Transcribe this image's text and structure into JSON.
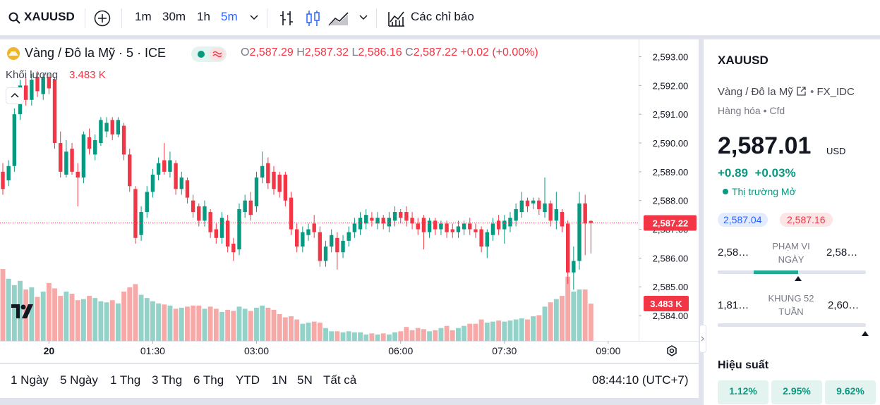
{
  "toolbar": {
    "symbol": "XAUUSD",
    "intervals": [
      "1m",
      "30m",
      "1h",
      "5m"
    ],
    "indicators": "Các chỉ báo"
  },
  "legend": {
    "title": "Vàng / Đô la Mỹ · 5 · ICE",
    "o_key": "O",
    "o": "2,587.29",
    "h_key": "H",
    "h": "2,587.32",
    "l_key": "L",
    "l": "2,586.16",
    "c_key": "C",
    "c": "2,587.22",
    "change": "+0.02 (+0.00%)",
    "volume_title": "Khối lượng"
  },
  "chart": {
    "type": "candlestick",
    "up_color": "#089981",
    "down_color": "#f23645",
    "up_volume_color": "#92d2c8",
    "down_volume_color": "#f7a9a7",
    "ylim": [
      2583.12,
      2593.6
    ],
    "yticks": [
      {
        "value": 2584,
        "label": "2,584.00"
      },
      {
        "value": 2585,
        "label": "2,585.00"
      },
      {
        "value": 2586,
        "label": "2,586.00"
      },
      {
        "value": 2587,
        "label": "2,587.00"
      },
      {
        "value": 2588,
        "label": "2,588.00"
      },
      {
        "value": 2589,
        "label": "2,589.00"
      },
      {
        "value": 2590,
        "label": "2,590.00"
      },
      {
        "value": 2591,
        "label": "2,591.00"
      },
      {
        "value": 2592,
        "label": "2,592.00"
      },
      {
        "value": 2593,
        "label": "2,593.00"
      }
    ],
    "xlim": [
      -0.49,
      110.28
    ],
    "xticks": [
      {
        "value": 8,
        "label": "20"
      },
      {
        "value": 26,
        "label": "01:30"
      },
      {
        "value": 44,
        "label": "03:00"
      },
      {
        "value": 69,
        "label": "06:00"
      },
      {
        "value": 87,
        "label": "07:30"
      },
      {
        "value": 105,
        "label": "09:00"
      }
    ],
    "last_price": {
      "value": 2587.22,
      "label": "2,587.22"
    },
    "volume_lim": [
      0,
      9.2
    ],
    "volume_label": "3.483 K",
    "candles": [
      [
        2589.0,
        2589.3,
        2588.2,
        2588.4
      ],
      [
        2588.7,
        2589.4,
        2588.5,
        2589.2
      ],
      [
        2589.2,
        2591.2,
        2589.0,
        2591.0
      ],
      [
        2591.0,
        2592.2,
        2590.8,
        2592.0
      ],
      [
        2592.0,
        2592.3,
        2591.3,
        2591.5
      ],
      [
        2591.5,
        2592.4,
        2591.3,
        2592.2
      ],
      [
        2592.3,
        2592.5,
        2591.6,
        2591.8
      ],
      [
        2591.7,
        2592.4,
        2591.5,
        2592.3
      ],
      [
        2592.3,
        2592.4,
        2591.7,
        2591.9
      ],
      [
        2592.2,
        2592.3,
        2589.8,
        2590.0
      ],
      [
        2590.0,
        2590.4,
        2588.8,
        2589.0
      ],
      [
        2588.9,
        2590.1,
        2588.8,
        2589.7
      ],
      [
        2589.8,
        2590.0,
        2588.9,
        2589.0
      ],
      [
        2589.0,
        2589.3,
        2587.8,
        2588.8
      ],
      [
        2588.8,
        2590.4,
        2588.6,
        2590.3
      ],
      [
        2590.2,
        2590.5,
        2589.6,
        2589.8
      ],
      [
        2589.6,
        2590.3,
        2589.4,
        2590.1
      ],
      [
        2590.0,
        2590.9,
        2589.9,
        2590.8
      ],
      [
        2590.4,
        2590.9,
        2590.2,
        2590.7
      ],
      [
        2590.8,
        2590.9,
        2590.1,
        2590.3
      ],
      [
        2590.3,
        2590.9,
        2590.2,
        2590.8
      ],
      [
        2590.6,
        2590.7,
        2589.4,
        2589.6
      ],
      [
        2589.6,
        2589.8,
        2588.3,
        2588.5
      ],
      [
        2588.4,
        2588.5,
        2586.5,
        2586.7
      ],
      [
        2586.8,
        2587.8,
        2586.6,
        2587.6
      ],
      [
        2587.6,
        2588.5,
        2587.4,
        2588.3
      ],
      [
        2588.3,
        2589.1,
        2588.1,
        2588.9
      ],
      [
        2588.9,
        2589.5,
        2588.7,
        2589.3
      ],
      [
        2589.4,
        2590.0,
        2588.9,
        2589.0
      ],
      [
        2589.0,
        2589.7,
        2588.8,
        2589.4
      ],
      [
        2589.3,
        2589.4,
        2588.2,
        2588.4
      ],
      [
        2588.4,
        2589.0,
        2588.2,
        2588.8
      ],
      [
        2588.7,
        2588.8,
        2587.9,
        2588.1
      ],
      [
        2588.0,
        2588.2,
        2587.4,
        2587.6
      ],
      [
        2587.8,
        2587.9,
        2587.1,
        2587.3
      ],
      [
        2587.3,
        2588.0,
        2587.1,
        2587.8
      ],
      [
        2587.6,
        2587.7,
        2586.7,
        2586.9
      ],
      [
        2587.0,
        2587.2,
        2586.5,
        2586.7
      ],
      [
        2586.7,
        2587.6,
        2586.5,
        2587.4
      ],
      [
        2587.3,
        2587.5,
        2586.2,
        2586.4
      ],
      [
        2586.5,
        2586.7,
        2585.9,
        2586.2
      ],
      [
        2586.3,
        2587.9,
        2586.1,
        2587.7
      ],
      [
        2587.6,
        2588.2,
        2587.4,
        2588.0
      ],
      [
        2588.0,
        2588.3,
        2587.3,
        2587.5
      ],
      [
        2587.8,
        2589.0,
        2587.6,
        2588.8
      ],
      [
        2588.8,
        2589.7,
        2588.6,
        2589.2
      ],
      [
        2589.3,
        2589.5,
        2588.4,
        2588.6
      ],
      [
        2589.0,
        2589.2,
        2588.2,
        2588.4
      ],
      [
        2588.9,
        2589.0,
        2588.1,
        2588.3
      ],
      [
        2588.9,
        2589.0,
        2587.8,
        2588.0
      ],
      [
        2588.1,
        2588.3,
        2586.8,
        2587.0
      ],
      [
        2587.0,
        2587.2,
        2586.2,
        2586.4
      ],
      [
        2586.4,
        2587.1,
        2586.2,
        2586.9
      ],
      [
        2586.8,
        2587.2,
        2586.6,
        2587.0
      ],
      [
        2587.2,
        2587.5,
        2586.7,
        2586.9
      ],
      [
        2586.9,
        2587.1,
        2585.7,
        2585.9
      ],
      [
        2585.9,
        2586.6,
        2585.7,
        2586.4
      ],
      [
        2586.4,
        2587.0,
        2586.2,
        2586.8
      ],
      [
        2586.7,
        2586.9,
        2585.6,
        2586.2
      ],
      [
        2586.2,
        2586.8,
        2586.0,
        2586.6
      ],
      [
        2586.6,
        2587.1,
        2586.4,
        2586.9
      ],
      [
        2586.9,
        2587.4,
        2586.7,
        2587.2
      ],
      [
        2587.0,
        2587.6,
        2586.8,
        2587.4
      ],
      [
        2587.2,
        2587.7,
        2587.0,
        2587.5
      ],
      [
        2587.4,
        2587.6,
        2587.1,
        2587.3
      ],
      [
        2587.2,
        2587.6,
        2587.0,
        2587.4
      ],
      [
        2587.4,
        2587.5,
        2587.0,
        2587.2
      ],
      [
        2587.1,
        2587.6,
        2586.9,
        2587.4
      ],
      [
        2587.3,
        2587.8,
        2587.1,
        2587.6
      ],
      [
        2587.6,
        2587.7,
        2587.2,
        2587.4
      ],
      [
        2587.6,
        2587.8,
        2587.1,
        2587.3
      ],
      [
        2587.4,
        2587.6,
        2587.0,
        2587.2
      ],
      [
        2587.2,
        2587.4,
        2586.8,
        2587.0
      ],
      [
        2587.4,
        2587.5,
        2586.3,
        2586.9
      ],
      [
        2586.9,
        2587.4,
        2586.7,
        2587.3
      ],
      [
        2587.3,
        2587.4,
        2586.8,
        2587.0
      ],
      [
        2587.0,
        2587.3,
        2586.8,
        2587.2
      ],
      [
        2587.2,
        2587.3,
        2586.7,
        2586.9
      ],
      [
        2587.0,
        2587.2,
        2586.7,
        2586.9
      ],
      [
        2586.9,
        2587.3,
        2586.7,
        2587.1
      ],
      [
        2587.0,
        2587.3,
        2586.8,
        2587.2
      ],
      [
        2587.2,
        2587.4,
        2586.8,
        2587.0
      ],
      [
        2587.0,
        2587.2,
        2586.7,
        2586.9
      ],
      [
        2587.0,
        2587.1,
        2586.2,
        2586.4
      ],
      [
        2586.4,
        2587.0,
        2586.0,
        2586.9
      ],
      [
        2586.8,
        2587.4,
        2586.6,
        2587.2
      ],
      [
        2587.3,
        2587.5,
        2586.8,
        2587.0
      ],
      [
        2587.0,
        2587.5,
        2586.5,
        2587.3
      ],
      [
        2587.1,
        2587.6,
        2586.9,
        2587.4
      ],
      [
        2587.3,
        2587.9,
        2587.1,
        2587.7
      ],
      [
        2587.6,
        2588.3,
        2587.4,
        2588.0
      ],
      [
        2588.0,
        2588.1,
        2587.6,
        2587.8
      ],
      [
        2587.9,
        2588.1,
        2587.7,
        2588.0
      ],
      [
        2588.0,
        2588.1,
        2587.5,
        2587.7
      ],
      [
        2587.6,
        2588.8,
        2587.4,
        2587.9
      ],
      [
        2587.9,
        2588.0,
        2587.1,
        2587.3
      ],
      [
        2587.3,
        2588.3,
        2587.0,
        2587.7
      ],
      [
        2587.6,
        2587.7,
        2586.9,
        2587.1
      ],
      [
        2587.2,
        2587.3,
        2585.1,
        2585.5
      ],
      [
        2585.5,
        2586.4,
        2584.9,
        2585.9
      ],
      [
        2585.9,
        2588.3,
        2585.6,
        2587.9
      ],
      [
        2587.9,
        2588.2,
        2586.1,
        2587.2
      ],
      [
        2587.29,
        2587.32,
        2586.16,
        2587.22
      ]
    ],
    "volumes": [
      6.7,
      5.8,
      5.2,
      5.6,
      4.8,
      5.0,
      4.1,
      4.6,
      5.4,
      4.9,
      4.2,
      4.6,
      4.4,
      3.8,
      3.9,
      4.2,
      4.0,
      3.7,
      3.6,
      3.8,
      3.5,
      4.6,
      5.0,
      5.3,
      4.3,
      4.0,
      3.7,
      3.5,
      3.4,
      3.3,
      3.0,
      3.1,
      3.2,
      3.3,
      3.3,
      3.0,
      3.2,
      3.0,
      2.7,
      2.9,
      2.8,
      3.2,
      3.0,
      2.8,
      3.1,
      3.3,
      3.1,
      2.9,
      2.5,
      2.2,
      2.3,
      2.0,
      1.6,
      1.7,
      1.8,
      1.7,
      1.2,
      0.9,
      0.9,
      0.8,
      0.9,
      0.8,
      0.8,
      0.6,
      0.7,
      0.6,
      0.7,
      0.6,
      0.8,
      0.9,
      1.3,
      1.0,
      1.2,
      1.1,
      0.9,
      1.0,
      1.2,
      1.4,
      1.0,
      1.2,
      1.4,
      1.6,
      1.6,
      2.0,
      1.7,
      1.8,
      1.9,
      1.8,
      1.9,
      2.0,
      2.1,
      2.0,
      2.3,
      2.4,
      3.2,
      3.6,
      3.9,
      4.2,
      6.0,
      4.6,
      4.8,
      4.8,
      3.483
    ]
  },
  "ranges": {
    "items": [
      "1 Ngày",
      "5 Ngày",
      "1 Thg",
      "3 Thg",
      "6 Thg",
      "YTD",
      "1N",
      "5N",
      "Tất cả"
    ],
    "clock": "08:44:10 (UTC+7)"
  },
  "sidebar": {
    "symbol": "XAUUSD",
    "description": "Vàng / Đô la Mỹ",
    "exchange": "FX_IDC",
    "category": "Hàng hóa",
    "kind": "Cfd",
    "price": "2,587.01",
    "currency": "USD",
    "change": "+0.89",
    "change_percent": "+0.03%",
    "status": "Thị trường Mở",
    "bid": "2,587.04",
    "ask": "2,587.16",
    "day_range": {
      "low": "2,58…",
      "label": "PHẠM VI NGÀY",
      "high": "2,58…"
    },
    "week52_range": {
      "low": "1,81…",
      "label": "KHUNG 52 TUẦN",
      "high": "2,60…"
    },
    "performance_title": "Hiệu suất",
    "performance": [
      "1.12%",
      "2.95%",
      "9.62%"
    ]
  }
}
